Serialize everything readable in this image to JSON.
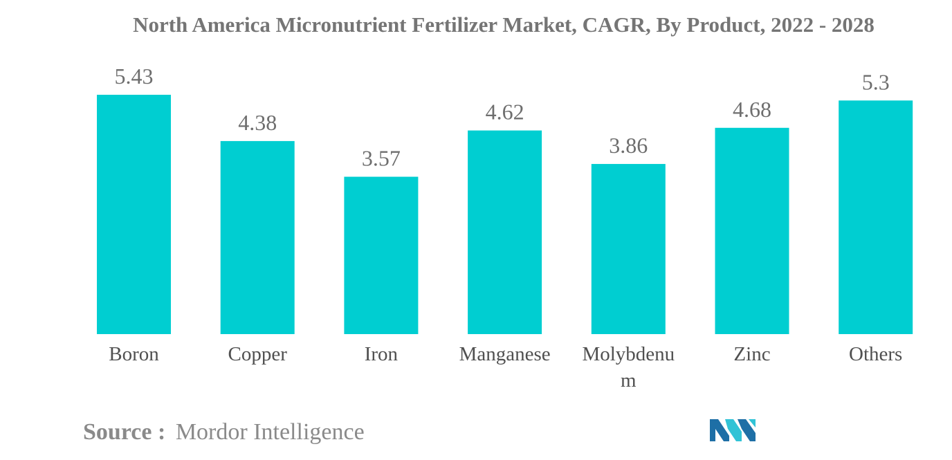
{
  "source": {
    "label": "Source :",
    "value": "Mordor Intelligence"
  },
  "logo": {
    "name": "mordor-intelligence-logo-icon",
    "colors": [
      "#1e6fa6",
      "#31c3d6"
    ]
  },
  "chart_data": {
    "type": "bar",
    "title": "North America Micronutrient Fertilizer Market, CAGR, By Product, 2022 - 2028",
    "xlabel": "",
    "ylabel": "",
    "categories": [
      [
        "Boron"
      ],
      [
        "Copper"
      ],
      [
        "Iron"
      ],
      [
        "Manganese"
      ],
      [
        "Molybdenu",
        "m"
      ],
      [
        "Zinc"
      ],
      [
        "Others"
      ]
    ],
    "values": [
      "5.43",
      "4.38",
      "3.57",
      "4.62",
      "3.86",
      "4.68",
      "5.3"
    ],
    "ylim": [
      0,
      5.43
    ],
    "grid": false,
    "legend": "none",
    "bar_color": "#00ced1"
  }
}
